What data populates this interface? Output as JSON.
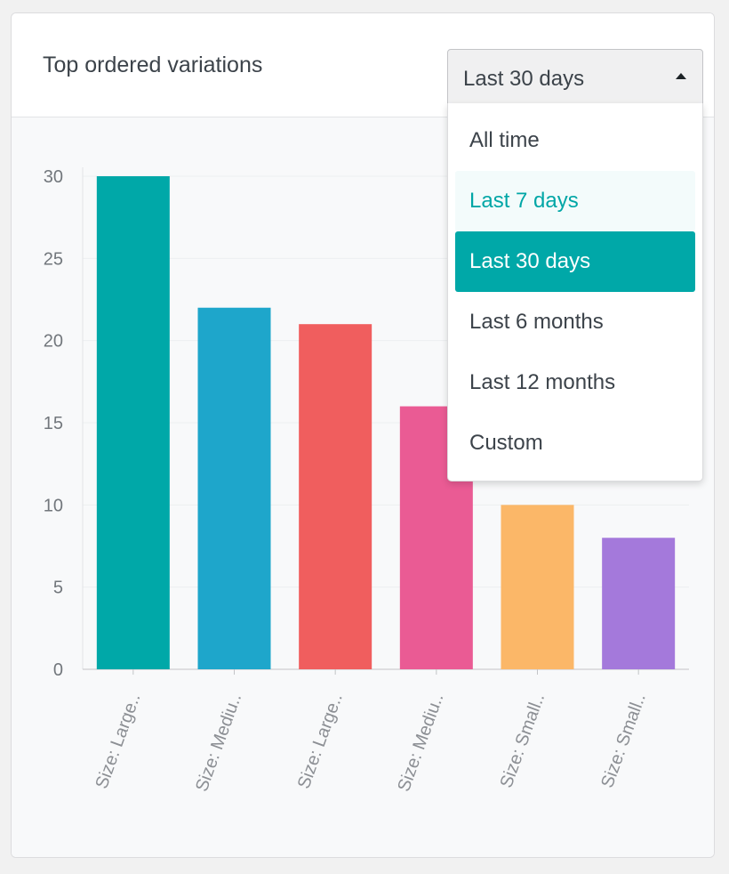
{
  "widget": {
    "title": "Top ordered variations"
  },
  "period_select": {
    "value": "Last 30 days",
    "options": [
      "All time",
      "Last 7 days",
      "Last 30 days",
      "Last 6 months",
      "Last 12 months",
      "Custom"
    ],
    "hovered_index": 1,
    "selected_index": 2
  },
  "chart_data": {
    "type": "bar",
    "categories": [
      "Size: Large..",
      "Size: Mediu..",
      "Size: Large..",
      "Size: Mediu..",
      "Size: Small..",
      "Size: Small.."
    ],
    "values": [
      30,
      22,
      21,
      16,
      10,
      8
    ],
    "colors": [
      "#00a8a8",
      "#1ea6cb",
      "#f05e5e",
      "#ea5b94",
      "#fbb768",
      "#a479db"
    ],
    "y_ticks": [
      0,
      5,
      10,
      15,
      20,
      25,
      30
    ],
    "ylim": [
      0,
      30
    ],
    "grid": true,
    "title": "",
    "xlabel": "",
    "ylabel": ""
  }
}
